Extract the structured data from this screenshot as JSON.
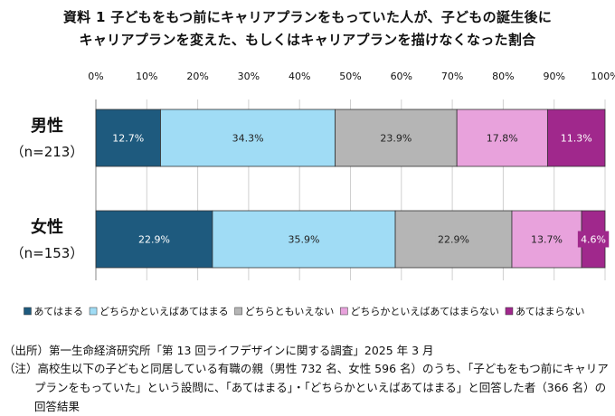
{
  "title": {
    "line1": "資料 1 子どもをもつ前にキャリアプランをもっていた人が、子どもの誕生後に",
    "line2": "キャリアプランを変えた、もしくはキャリアプランを描けなくなった割合"
  },
  "chart_data": {
    "type": "bar",
    "orientation": "horizontal-stacked-100",
    "categories": [
      {
        "label": "男性",
        "sublabel": "（n=213）"
      },
      {
        "label": "女性",
        "sublabel": "（n=153）"
      }
    ],
    "x_ticks": [
      "0%",
      "10%",
      "20%",
      "30%",
      "40%",
      "50%",
      "60%",
      "70%",
      "80%",
      "90%",
      "100%"
    ],
    "xlim": [
      0,
      100
    ],
    "grid": true,
    "legend_position": "bottom",
    "series": [
      {
        "name": "あてはまる",
        "color": "#1e5a7e",
        "text_color": "#ffffff",
        "values": [
          12.7,
          22.9
        ],
        "labels": [
          "12.7%",
          "22.9%"
        ]
      },
      {
        "name": "どちらかといえばあてはまる",
        "color": "#a0dcf5",
        "text_color": "#222222",
        "values": [
          34.3,
          35.9
        ],
        "labels": [
          "34.3%",
          "35.9%"
        ]
      },
      {
        "name": "どちらともいえない",
        "color": "#b5b5b5",
        "text_color": "#222222",
        "values": [
          23.9,
          22.9
        ],
        "labels": [
          "23.9%",
          "22.9%"
        ]
      },
      {
        "name": "どちらかといえばあてはまらない",
        "color": "#e8a2dc",
        "text_color": "#222222",
        "values": [
          17.8,
          13.7
        ],
        "labels": [
          "17.8%",
          "13.7%"
        ]
      },
      {
        "name": "あてはまらない",
        "color": "#a0288c",
        "text_color": "#ffffff",
        "values": [
          11.3,
          4.6
        ],
        "labels": [
          "11.3%",
          "4.6%"
        ]
      }
    ]
  },
  "footer": {
    "source_prefix": "（出所）",
    "source": "第一生命経済研究所「第 13 回ライフデザインに関する調査」2025 年 3 月",
    "note_prefix": "（注）",
    "note": "高校生以下の子どもと同居している有職の親（男性 732 名、女性 596 名）のうち、「子どもをもつ前にキャリアプランをもっていた」という設問に、「あてはまる」・「どちらかといえばあてはまる」と回答した者（366 名）の回答結果"
  }
}
